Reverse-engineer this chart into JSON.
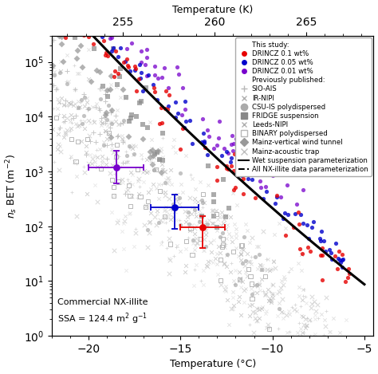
{
  "title_bottom": "Temperature (°C)",
  "title_top": "Temperature (K)",
  "ylabel": "$n_s$ BET (m$^{-2}$)",
  "xlim_c": [
    -22,
    -4.5
  ],
  "ylim": [
    1.0,
    300000.0
  ],
  "annotation_line1": "Commercial NX-illite",
  "annotation_line2": "SSA = 124.4 m$^2$ g$^{-1}$",
  "background_color": "#ffffff",
  "wet_color": "#000000",
  "all_color": "#000000",
  "red": "#e60000",
  "blue": "#0000cc",
  "purple": "#7700cc",
  "gray_light": "#bbbbbb",
  "gray_mid": "#999999",
  "gray_dark": "#777777"
}
